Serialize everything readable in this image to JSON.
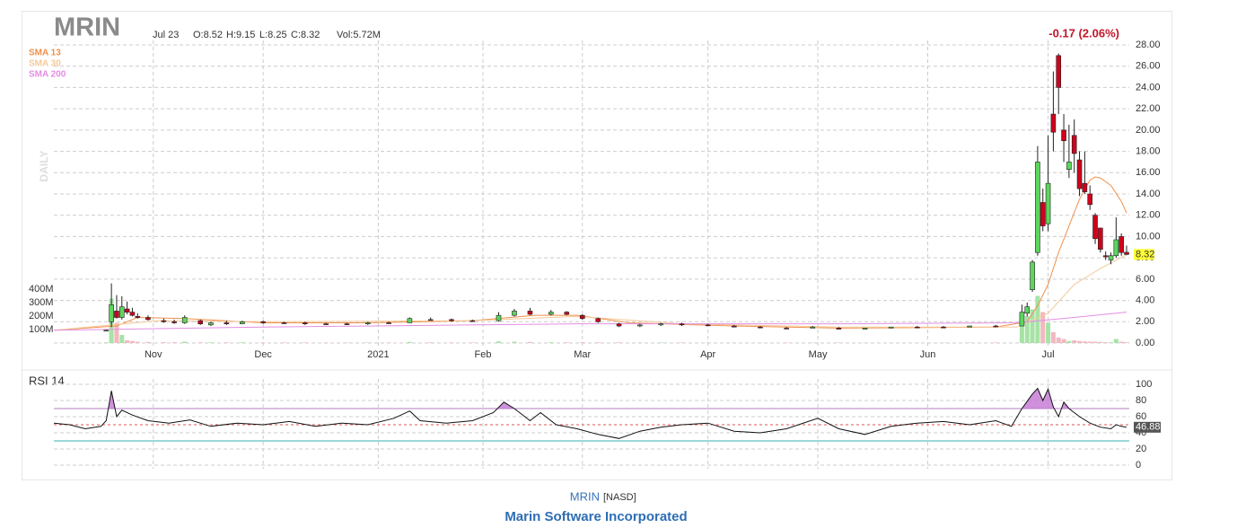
{
  "chart_data": {
    "type": "candlestick",
    "symbol": "MRIN",
    "date": "Jul 23",
    "ohlc_text": [
      "O:8.52",
      "H:9.15",
      "L:8.25",
      "C:8.32"
    ],
    "volume_text": "Vol:5.72M",
    "change_text": "-0.17 (2.06%)",
    "period": "DAILY",
    "xlim": [
      0,
      205
    ],
    "xticks": [
      {
        "value": 19,
        "label": "Nov"
      },
      {
        "value": 40,
        "label": "Dec"
      },
      {
        "value": 62,
        "label": "2021"
      },
      {
        "value": 82,
        "label": "Feb"
      },
      {
        "value": 101,
        "label": "Mar"
      },
      {
        "value": 125,
        "label": "Apr"
      },
      {
        "value": 146,
        "label": "May"
      },
      {
        "value": 167,
        "label": "Jun"
      },
      {
        "value": 190,
        "label": "Jul"
      }
    ],
    "ylim": [
      0,
      28
    ],
    "yticks": [
      {
        "value": 0,
        "label": "0.00"
      },
      {
        "value": 2,
        "label": "2.00"
      },
      {
        "value": 4,
        "label": "4.00"
      },
      {
        "value": 6,
        "label": "6.00"
      },
      {
        "value": 8,
        "label": "8.00"
      },
      {
        "value": 10,
        "label": "10.00"
      },
      {
        "value": 12,
        "label": "12.00"
      },
      {
        "value": 14,
        "label": "14.00"
      },
      {
        "value": 16,
        "label": "16.00"
      },
      {
        "value": 18,
        "label": "18.00"
      },
      {
        "value": 20,
        "label": "20.00"
      },
      {
        "value": 22,
        "label": "22.00"
      },
      {
        "value": 24,
        "label": "24.00"
      },
      {
        "value": 26,
        "label": "26.00"
      },
      {
        "value": 28,
        "label": "28.00"
      }
    ],
    "volume_lim": [
      0,
      400000000
    ],
    "volume_ticks": [
      {
        "value": 100000000,
        "label": "100M"
      },
      {
        "value": 200000000,
        "label": "200M"
      },
      {
        "value": 300000000,
        "label": "300M"
      },
      {
        "value": 400000000,
        "label": "400M"
      }
    ],
    "up_color": "#5cd65c",
    "down_color": "#d0021b",
    "up_volume_color": "#a6e3a6",
    "down_volume_color": "#f2b8bf",
    "candles": [
      {
        "x": 10,
        "open": 1.15,
        "high": 1.25,
        "low": 1.1,
        "close": 1.2,
        "volume": 5000000
      },
      {
        "x": 11,
        "open": 2.0,
        "high": 5.6,
        "low": 1.5,
        "close": 3.6,
        "volume": 330000000
      },
      {
        "x": 12,
        "open": 3.0,
        "high": 4.5,
        "low": 2.3,
        "close": 2.4,
        "volume": 150000000
      },
      {
        "x": 13,
        "open": 2.4,
        "high": 4.4,
        "low": 2.2,
        "close": 3.4,
        "volume": 60000000
      },
      {
        "x": 14,
        "open": 3.2,
        "high": 3.9,
        "low": 2.7,
        "close": 2.9,
        "volume": 20000000
      },
      {
        "x": 15,
        "open": 2.9,
        "high": 3.3,
        "low": 2.5,
        "close": 2.6,
        "volume": 15000000
      },
      {
        "x": 16,
        "open": 2.5,
        "high": 2.8,
        "low": 2.3,
        "close": 2.4,
        "volume": 10000000
      },
      {
        "x": 18,
        "open": 2.4,
        "high": 2.6,
        "low": 2.1,
        "close": 2.2,
        "volume": 8000000
      },
      {
        "x": 21,
        "open": 2.1,
        "high": 2.3,
        "low": 1.9,
        "close": 2.0,
        "volume": 6000000
      },
      {
        "x": 23,
        "open": 2.0,
        "high": 2.2,
        "low": 1.8,
        "close": 1.9,
        "volume": 6000000
      },
      {
        "x": 25,
        "open": 1.9,
        "high": 2.6,
        "low": 1.8,
        "close": 2.4,
        "volume": 10000000
      },
      {
        "x": 28,
        "open": 2.1,
        "high": 2.2,
        "low": 1.7,
        "close": 1.8,
        "volume": 5000000
      },
      {
        "x": 30,
        "open": 1.7,
        "high": 2.0,
        "low": 1.6,
        "close": 1.9,
        "volume": 5000000
      },
      {
        "x": 33,
        "open": 1.9,
        "high": 2.1,
        "low": 1.7,
        "close": 1.8,
        "volume": 5000000
      },
      {
        "x": 36,
        "open": 1.8,
        "high": 2.1,
        "low": 1.8,
        "close": 2.0,
        "volume": 5000000
      },
      {
        "x": 40,
        "open": 2.0,
        "high": 2.1,
        "low": 1.8,
        "close": 1.9,
        "volume": 4000000
      },
      {
        "x": 44,
        "open": 1.9,
        "high": 2.0,
        "low": 1.8,
        "close": 1.85,
        "volume": 4000000
      },
      {
        "x": 48,
        "open": 1.9,
        "high": 2.0,
        "low": 1.7,
        "close": 1.8,
        "volume": 4000000
      },
      {
        "x": 52,
        "open": 1.8,
        "high": 1.9,
        "low": 1.7,
        "close": 1.75,
        "volume": 4000000
      },
      {
        "x": 56,
        "open": 1.8,
        "high": 1.9,
        "low": 1.7,
        "close": 1.75,
        "volume": 3000000
      },
      {
        "x": 60,
        "open": 1.8,
        "high": 2.0,
        "low": 1.7,
        "close": 1.9,
        "volume": 4000000
      },
      {
        "x": 64,
        "open": 1.9,
        "high": 2.0,
        "low": 1.8,
        "close": 1.85,
        "volume": 4000000
      },
      {
        "x": 68,
        "open": 1.9,
        "high": 2.4,
        "low": 1.9,
        "close": 2.3,
        "volume": 8000000
      },
      {
        "x": 72,
        "open": 2.2,
        "high": 2.4,
        "low": 2.1,
        "close": 2.15,
        "volume": 5000000
      },
      {
        "x": 76,
        "open": 2.2,
        "high": 2.3,
        "low": 2.0,
        "close": 2.1,
        "volume": 4000000
      },
      {
        "x": 80,
        "open": 2.1,
        "high": 2.2,
        "low": 2.0,
        "close": 2.05,
        "volume": 4000000
      },
      {
        "x": 85,
        "open": 2.1,
        "high": 2.9,
        "low": 2.0,
        "close": 2.6,
        "volume": 12000000
      },
      {
        "x": 88,
        "open": 2.6,
        "high": 3.2,
        "low": 2.5,
        "close": 3.0,
        "volume": 10000000
      },
      {
        "x": 91,
        "open": 3.0,
        "high": 3.3,
        "low": 2.6,
        "close": 2.7,
        "volume": 8000000
      },
      {
        "x": 95,
        "open": 2.7,
        "high": 3.1,
        "low": 2.6,
        "close": 2.9,
        "volume": 6000000
      },
      {
        "x": 98,
        "open": 2.9,
        "high": 3.0,
        "low": 2.6,
        "close": 2.7,
        "volume": 5000000
      },
      {
        "x": 101,
        "open": 2.6,
        "high": 2.7,
        "low": 2.2,
        "close": 2.3,
        "volume": 6000000
      },
      {
        "x": 104,
        "open": 2.3,
        "high": 2.4,
        "low": 1.9,
        "close": 2.0,
        "volume": 5000000
      },
      {
        "x": 108,
        "open": 1.8,
        "high": 1.9,
        "low": 1.5,
        "close": 1.6,
        "volume": 5000000
      },
      {
        "x": 112,
        "open": 1.6,
        "high": 1.8,
        "low": 1.5,
        "close": 1.7,
        "volume": 4000000
      },
      {
        "x": 116,
        "open": 1.7,
        "high": 1.9,
        "low": 1.6,
        "close": 1.8,
        "volume": 4000000
      },
      {
        "x": 120,
        "open": 1.8,
        "high": 1.9,
        "low": 1.6,
        "close": 1.7,
        "volume": 4000000
      },
      {
        "x": 125,
        "open": 1.7,
        "high": 1.8,
        "low": 1.6,
        "close": 1.65,
        "volume": 3000000
      },
      {
        "x": 130,
        "open": 1.6,
        "high": 1.7,
        "low": 1.5,
        "close": 1.5,
        "volume": 3000000
      },
      {
        "x": 135,
        "open": 1.5,
        "high": 1.6,
        "low": 1.4,
        "close": 1.45,
        "volume": 3000000
      },
      {
        "x": 140,
        "open": 1.4,
        "high": 1.5,
        "low": 1.3,
        "close": 1.35,
        "volume": 3000000
      },
      {
        "x": 145,
        "open": 1.4,
        "high": 1.6,
        "low": 1.4,
        "close": 1.5,
        "volume": 3000000
      },
      {
        "x": 150,
        "open": 1.4,
        "high": 1.5,
        "low": 1.3,
        "close": 1.3,
        "volume": 3000000
      },
      {
        "x": 155,
        "open": 1.3,
        "high": 1.4,
        "low": 1.3,
        "close": 1.4,
        "volume": 3000000
      },
      {
        "x": 160,
        "open": 1.4,
        "high": 1.5,
        "low": 1.4,
        "close": 1.5,
        "volume": 3000000
      },
      {
        "x": 165,
        "open": 1.5,
        "high": 1.6,
        "low": 1.4,
        "close": 1.45,
        "volume": 3000000
      },
      {
        "x": 170,
        "open": 1.5,
        "high": 1.6,
        "low": 1.4,
        "close": 1.45,
        "volume": 3000000
      },
      {
        "x": 175,
        "open": 1.5,
        "high": 1.6,
        "low": 1.5,
        "close": 1.6,
        "volume": 3000000
      },
      {
        "x": 180,
        "open": 1.6,
        "high": 1.7,
        "low": 1.5,
        "close": 1.55,
        "volume": 4000000
      },
      {
        "x": 185,
        "open": 1.6,
        "high": 3.6,
        "low": 1.6,
        "close": 2.9,
        "volume": 180000000
      },
      {
        "x": 186,
        "open": 2.8,
        "high": 3.8,
        "low": 2.5,
        "close": 3.4,
        "volume": 200000000
      },
      {
        "x": 187,
        "open": 5.0,
        "high": 7.8,
        "low": 4.8,
        "close": 7.6,
        "volume": 250000000
      },
      {
        "x": 188,
        "open": 8.5,
        "high": 18.5,
        "low": 8.2,
        "close": 17.0,
        "volume": 350000000
      },
      {
        "x": 189,
        "open": 13.2,
        "high": 14.5,
        "low": 10.5,
        "close": 11.0,
        "volume": 230000000
      },
      {
        "x": 190,
        "open": 11.2,
        "high": 19.5,
        "low": 10.5,
        "close": 15.0,
        "volume": 150000000
      },
      {
        "x": 191,
        "open": 21.5,
        "high": 25.5,
        "low": 18.0,
        "close": 19.8,
        "volume": 80000000
      },
      {
        "x": 192,
        "open": 27.0,
        "high": 27.2,
        "low": 21.5,
        "close": 24.0,
        "volume": 40000000
      },
      {
        "x": 193,
        "open": 20.0,
        "high": 21.5,
        "low": 17.0,
        "close": 19.0,
        "volume": 30000000
      },
      {
        "x": 194,
        "open": 16.3,
        "high": 20.5,
        "low": 15.5,
        "close": 17.0,
        "volume": 15000000
      },
      {
        "x": 195,
        "open": 19.5,
        "high": 21.0,
        "low": 16.0,
        "close": 17.8,
        "volume": 20000000
      },
      {
        "x": 196,
        "open": 17.2,
        "high": 18.0,
        "low": 13.8,
        "close": 14.5,
        "volume": 15000000
      },
      {
        "x": 197,
        "open": 15.0,
        "high": 18.0,
        "low": 14.0,
        "close": 14.2,
        "volume": 12000000
      },
      {
        "x": 198,
        "open": 14.0,
        "high": 14.8,
        "low": 12.5,
        "close": 13.0,
        "volume": 10000000
      },
      {
        "x": 199,
        "open": 12.0,
        "high": 12.2,
        "low": 9.3,
        "close": 9.8,
        "volume": 10000000
      },
      {
        "x": 200,
        "open": 10.8,
        "high": 10.8,
        "low": 8.5,
        "close": 8.8,
        "volume": 8000000
      },
      {
        "x": 201,
        "open": 8.2,
        "high": 8.6,
        "low": 7.8,
        "close": 8.1,
        "volume": 6000000
      },
      {
        "x": 202,
        "open": 7.8,
        "high": 8.5,
        "low": 7.4,
        "close": 8.2,
        "volume": 5000000
      },
      {
        "x": 203,
        "open": 8.2,
        "high": 11.8,
        "low": 8.0,
        "close": 9.7,
        "volume": 30000000
      },
      {
        "x": 204,
        "open": 10.0,
        "high": 10.3,
        "low": 8.2,
        "close": 8.5,
        "volume": 10000000
      },
      {
        "x": 205,
        "open": 8.52,
        "high": 9.15,
        "low": 8.25,
        "close": 8.32,
        "volume": 5720000
      }
    ],
    "last_label_color": "#ffff33",
    "sma": [
      {
        "name": "SMA 13",
        "color": "#f0904a",
        "x": [
          0,
          12,
          16,
          25,
          40,
          60,
          80,
          92,
          100,
          110,
          130,
          150,
          180,
          186,
          188,
          190,
          192,
          194,
          196,
          198,
          199,
          200,
          202,
          204,
          205
        ],
        "values": [
          1.2,
          1.6,
          2.4,
          2.3,
          1.9,
          1.9,
          2.1,
          2.6,
          2.6,
          1.9,
          1.6,
          1.4,
          1.5,
          2.0,
          3.5,
          5.5,
          8.5,
          11,
          13.5,
          15.3,
          15.6,
          15.5,
          14.8,
          13.3,
          12.2
        ]
      },
      {
        "name": "SMA 30",
        "color": "#f5c99a",
        "x": [
          0,
          20,
          40,
          80,
          100,
          120,
          150,
          184,
          190,
          195,
          200,
          205
        ],
        "values": [
          1.2,
          2.1,
          2.0,
          2.1,
          2.5,
          1.8,
          1.5,
          1.5,
          2.8,
          5.5,
          7.0,
          8.3
        ]
      },
      {
        "name": "SMA 200",
        "color": "#e38ee3",
        "x": [
          0,
          40,
          100,
          150,
          184,
          195,
          205
        ],
        "values": [
          1.2,
          1.5,
          1.8,
          1.8,
          1.9,
          2.4,
          2.9
        ]
      }
    ],
    "rsi": {
      "name": "RSI 14",
      "color": "#111111",
      "fill": "#c77dd6",
      "ylim": [
        0,
        100
      ],
      "yticks": [
        0,
        20,
        40,
        60,
        80,
        100
      ],
      "levels": [
        {
          "value": 70,
          "color": "#b07cc6"
        },
        {
          "value": 50,
          "color": "#e05555"
        },
        {
          "value": 30,
          "color": "#3ab0b0"
        }
      ],
      "x": [
        0,
        3,
        6,
        9,
        10,
        11,
        12,
        13,
        15,
        18,
        22,
        26,
        30,
        35,
        40,
        45,
        50,
        55,
        60,
        65,
        68,
        70,
        75,
        80,
        84,
        86,
        88,
        91,
        93,
        96,
        100,
        104,
        108,
        112,
        116,
        120,
        125,
        130,
        135,
        140,
        146,
        150,
        155,
        160,
        165,
        170,
        175,
        180,
        183,
        185,
        187,
        188,
        189,
        190,
        191,
        192,
        193,
        194,
        196,
        198,
        200,
        202,
        203,
        204,
        205
      ],
      "values": [
        52,
        50,
        45,
        48,
        55,
        92,
        60,
        68,
        62,
        55,
        52,
        56,
        48,
        52,
        50,
        54,
        48,
        52,
        50,
        58,
        67,
        55,
        52,
        55,
        65,
        78,
        70,
        55,
        65,
        50,
        45,
        38,
        33,
        42,
        47,
        50,
        52,
        42,
        40,
        45,
        58,
        45,
        38,
        48,
        52,
        54,
        50,
        55,
        48,
        70,
        88,
        95,
        80,
        94,
        72,
        60,
        78,
        70,
        60,
        52,
        47,
        45,
        50,
        48,
        46.88
      ]
    },
    "footer": {
      "symbol": "MRIN",
      "exchange": "[NASD]",
      "company": "Marin Software Incorporated"
    }
  }
}
